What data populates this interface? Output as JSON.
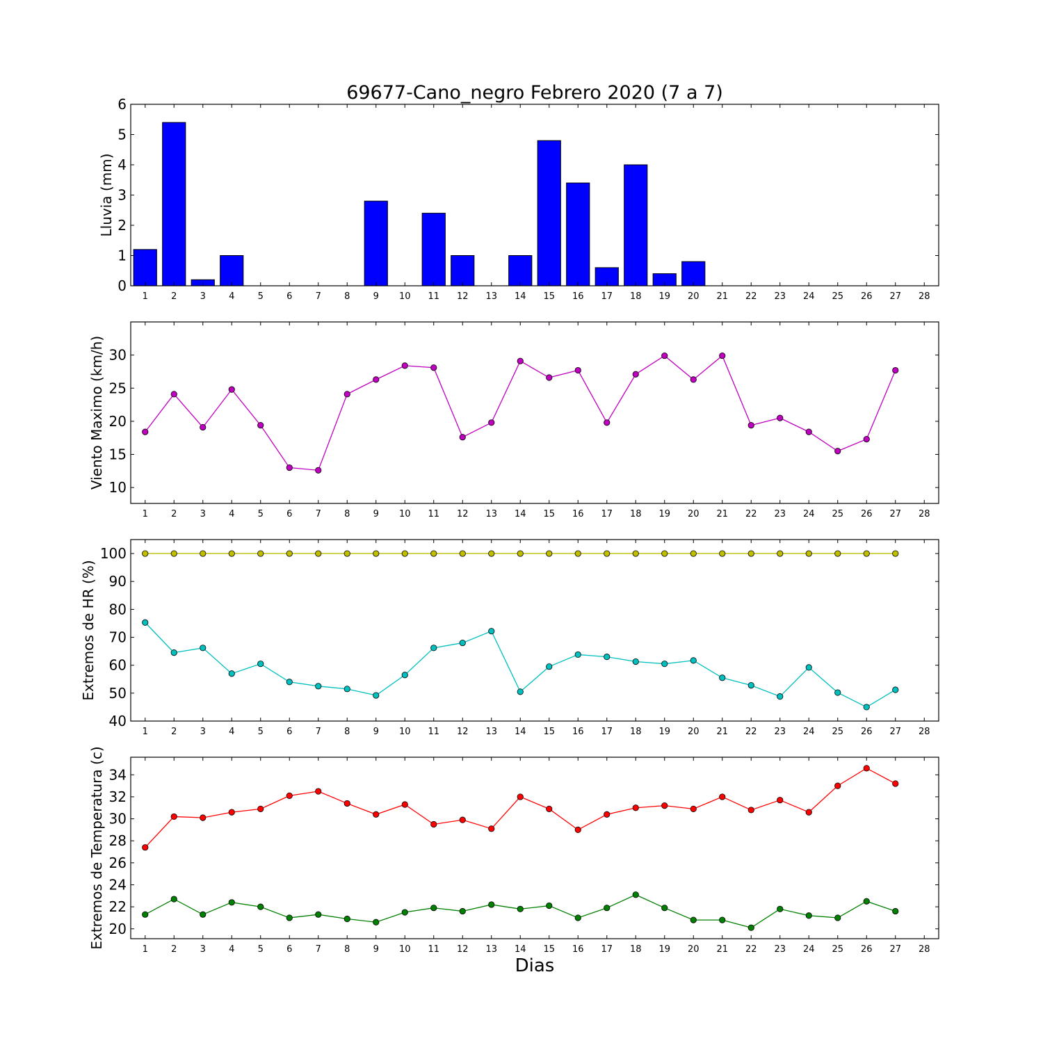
{
  "chart_data": [
    {
      "type": "bar",
      "title": "69677-Cano_negro Febrero 2020  (7 a 7)",
      "ylabel": "Lluvia (mm)",
      "xlim": [
        0.5,
        28.5
      ],
      "ylim": [
        0,
        6
      ],
      "xticks": [
        1,
        2,
        3,
        4,
        5,
        6,
        7,
        8,
        9,
        10,
        11,
        12,
        13,
        14,
        15,
        16,
        17,
        18,
        19,
        20,
        21,
        22,
        23,
        24,
        25,
        26,
        27,
        28
      ],
      "yticks": [
        0,
        1,
        2,
        3,
        4,
        5,
        6
      ],
      "grid": false,
      "series": [
        {
          "color": "#0000ff",
          "x": [
            1,
            2,
            3,
            4,
            5,
            6,
            7,
            8,
            9,
            10,
            11,
            12,
            13,
            14,
            15,
            16,
            17,
            18,
            19,
            20,
            21,
            22,
            23,
            24,
            25,
            26,
            27
          ],
          "values": [
            1.2,
            5.4,
            0.2,
            1.0,
            0,
            0,
            0,
            0,
            2.8,
            0,
            2.4,
            1.0,
            0,
            1.0,
            4.8,
            3.4,
            0.6,
            4.0,
            0.4,
            0.8,
            0,
            0,
            0,
            0,
            0,
            0,
            0
          ]
        }
      ]
    },
    {
      "type": "line",
      "ylabel": "Viento Maximo (km/h)",
      "xlim": [
        0.5,
        28.5
      ],
      "ylim": [
        7.6,
        35
      ],
      "xticks": [
        1,
        2,
        3,
        4,
        5,
        6,
        7,
        8,
        9,
        10,
        11,
        12,
        13,
        14,
        15,
        16,
        17,
        18,
        19,
        20,
        21,
        22,
        23,
        24,
        25,
        26,
        27,
        28
      ],
      "yticks": [
        10,
        15,
        20,
        25,
        30
      ],
      "grid": false,
      "series": [
        {
          "color": "#bf00bf",
          "x": [
            1,
            2,
            3,
            4,
            5,
            6,
            7,
            8,
            9,
            10,
            11,
            12,
            13,
            14,
            15,
            16,
            17,
            18,
            19,
            20,
            21,
            22,
            23,
            24,
            25,
            26,
            27
          ],
          "values": [
            18.4,
            24.1,
            19.1,
            24.8,
            19.4,
            13.0,
            12.6,
            24.1,
            26.3,
            28.4,
            28.1,
            17.6,
            19.8,
            29.1,
            26.6,
            27.7,
            19.8,
            27.1,
            29.9,
            26.3,
            29.9,
            19.4,
            20.5,
            18.4,
            15.5,
            17.3,
            27.7
          ]
        }
      ]
    },
    {
      "type": "line",
      "ylabel": "Extremos de HR (%)",
      "xlim": [
        0.5,
        28.5
      ],
      "ylim": [
        40,
        105
      ],
      "xticks": [
        1,
        2,
        3,
        4,
        5,
        6,
        7,
        8,
        9,
        10,
        11,
        12,
        13,
        14,
        15,
        16,
        17,
        18,
        19,
        20,
        21,
        22,
        23,
        24,
        25,
        26,
        27,
        28
      ],
      "yticks": [
        40,
        50,
        60,
        70,
        80,
        90,
        100
      ],
      "grid": false,
      "series": [
        {
          "color": "#bfbf00",
          "x": [
            1,
            2,
            3,
            4,
            5,
            6,
            7,
            8,
            9,
            10,
            11,
            12,
            13,
            14,
            15,
            16,
            17,
            18,
            19,
            20,
            21,
            22,
            23,
            24,
            25,
            26,
            27
          ],
          "values": [
            100,
            100,
            100,
            100,
            100,
            100,
            100,
            100,
            100,
            100,
            100,
            100,
            100,
            100,
            100,
            100,
            100,
            100,
            100,
            100,
            100,
            100,
            100,
            100,
            100,
            100,
            100
          ]
        },
        {
          "color": "#00bfbf",
          "x": [
            1,
            2,
            3,
            4,
            5,
            6,
            7,
            8,
            9,
            10,
            11,
            12,
            13,
            14,
            15,
            16,
            17,
            18,
            19,
            20,
            21,
            22,
            23,
            24,
            25,
            26,
            27
          ],
          "values": [
            75.3,
            64.5,
            66.2,
            57.0,
            60.5,
            54.0,
            52.5,
            51.5,
            49.2,
            56.5,
            66.2,
            68.0,
            72.2,
            50.5,
            59.5,
            63.8,
            63.0,
            61.3,
            60.5,
            61.7,
            55.5,
            52.8,
            48.8,
            59.2,
            50.2,
            45.0,
            51.2
          ]
        }
      ]
    },
    {
      "type": "line",
      "ylabel": "Extremos de Temperatura (c)",
      "xlabel": "Dias",
      "xlim": [
        0.5,
        28.5
      ],
      "ylim": [
        19.1,
        35.6
      ],
      "xticks": [
        1,
        2,
        3,
        4,
        5,
        6,
        7,
        8,
        9,
        10,
        11,
        12,
        13,
        14,
        15,
        16,
        17,
        18,
        19,
        20,
        21,
        22,
        23,
        24,
        25,
        26,
        27,
        28
      ],
      "yticks": [
        20,
        22,
        24,
        26,
        28,
        30,
        32,
        34
      ],
      "grid": false,
      "series": [
        {
          "color": "#ff0000",
          "x": [
            1,
            2,
            3,
            4,
            5,
            6,
            7,
            8,
            9,
            10,
            11,
            12,
            13,
            14,
            15,
            16,
            17,
            18,
            19,
            20,
            21,
            22,
            23,
            24,
            25,
            26,
            27
          ],
          "values": [
            27.4,
            30.2,
            30.1,
            30.6,
            30.9,
            32.1,
            32.5,
            31.4,
            30.4,
            31.3,
            29.5,
            29.9,
            29.1,
            32.0,
            30.9,
            29.0,
            30.4,
            31.0,
            31.2,
            30.9,
            32.0,
            30.8,
            31.7,
            30.6,
            33.0,
            34.6,
            33.2
          ]
        },
        {
          "color": "#008000",
          "x": [
            1,
            2,
            3,
            4,
            5,
            6,
            7,
            8,
            9,
            10,
            11,
            12,
            13,
            14,
            15,
            16,
            17,
            18,
            19,
            20,
            21,
            22,
            23,
            24,
            25,
            26,
            27
          ],
          "values": [
            21.3,
            22.7,
            21.3,
            22.4,
            22.0,
            21.0,
            21.3,
            20.9,
            20.6,
            21.5,
            21.9,
            21.6,
            22.2,
            21.8,
            22.1,
            21.0,
            21.9,
            23.1,
            21.9,
            20.8,
            20.8,
            20.1,
            21.8,
            21.2,
            21.0,
            22.5,
            21.6
          ]
        }
      ]
    }
  ]
}
